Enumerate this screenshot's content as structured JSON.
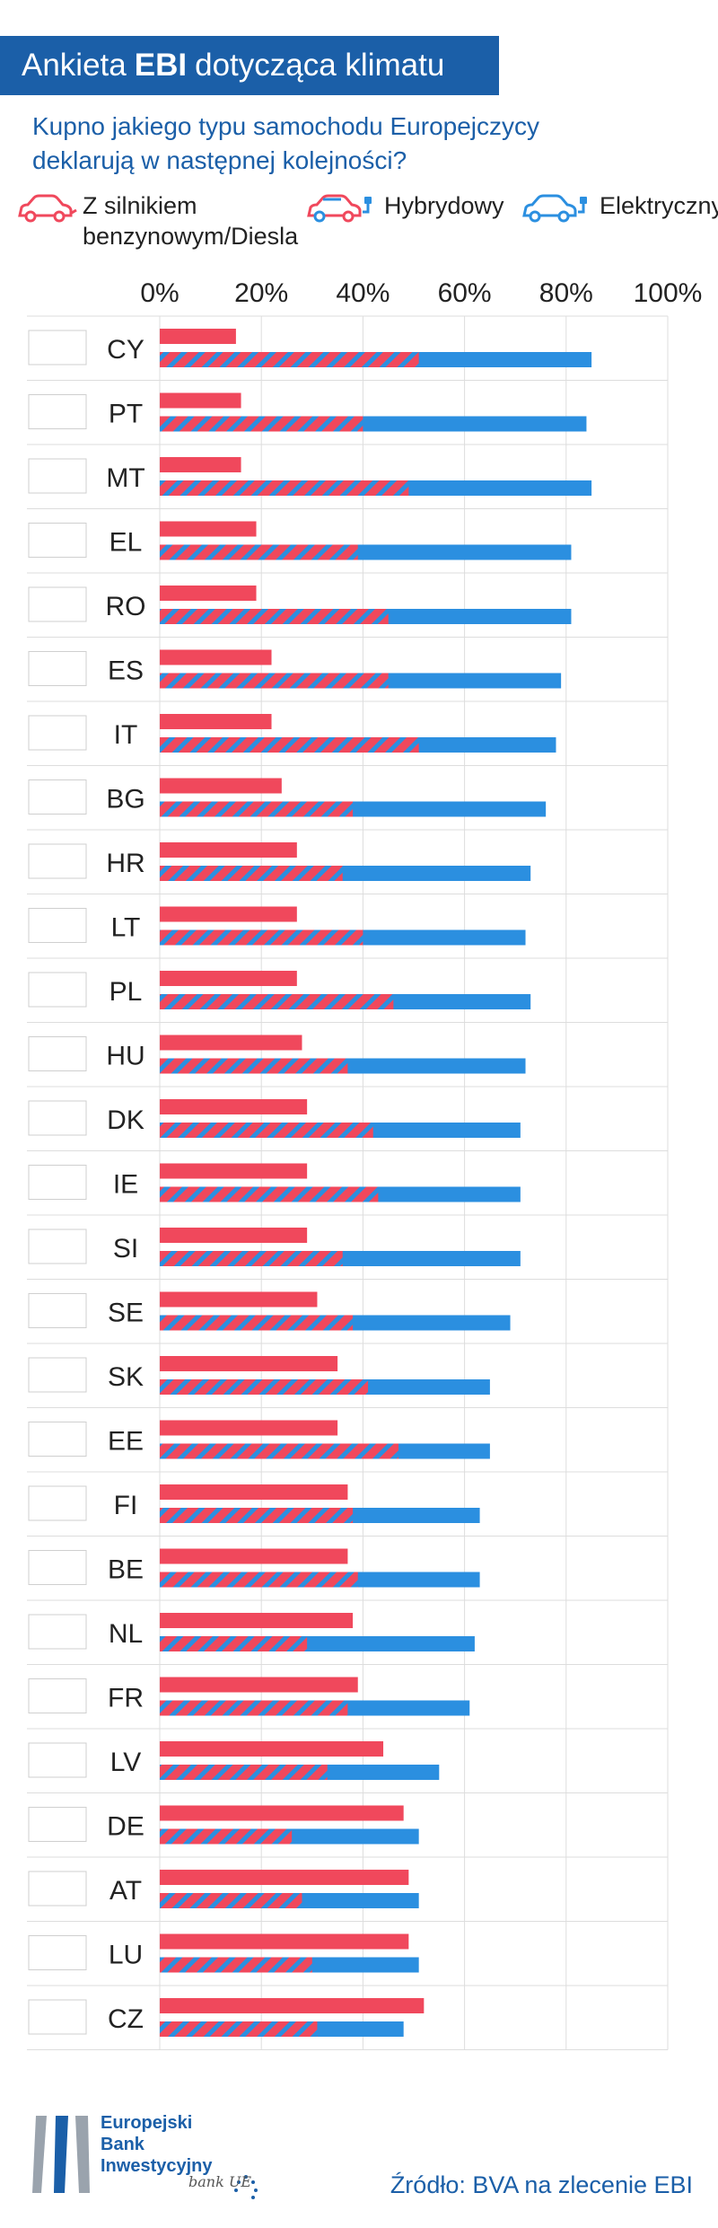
{
  "header": {
    "title_prefix": "Ankieta",
    "title_bold": "EBI",
    "title_suffix": "dotycząca klimatu"
  },
  "subtitle": "Kupno jakiego typu samochodu Europejczycy deklarują w następnej kolejności?",
  "legend": {
    "gas_line1": "Z silnikiem",
    "gas_line2": "benzynowym/Diesla",
    "hybrid": "Hybrydowy",
    "electric": "Elektryczny",
    "icons": [
      "car-icon-red",
      "car-icon-hybrid",
      "car-icon-blue"
    ]
  },
  "colors": {
    "gasoline": "#f0485c",
    "electric": "#2b8fe0",
    "brand": "#1b5fa8",
    "grid": "#dddddd"
  },
  "chart_data": {
    "type": "bar",
    "orientation": "horizontal",
    "x_ticks": [
      "0%",
      "20%",
      "40%",
      "60%",
      "80%",
      "100%"
    ],
    "xlim": [
      0,
      100
    ],
    "grid": true,
    "legend_placement": "top",
    "series_names": [
      "Z silnikiem benzynowym/Diesla",
      "Hybrydowy",
      "Elektryczny"
    ],
    "categories": [
      "CY",
      "PT",
      "MT",
      "EL",
      "RO",
      "ES",
      "IT",
      "BG",
      "HR",
      "LT",
      "PL",
      "HU",
      "DK",
      "IE",
      "SI",
      "SE",
      "SK",
      "EE",
      "FI",
      "BE",
      "NL",
      "FR",
      "LV",
      "DE",
      "AT",
      "LU",
      "CZ"
    ],
    "gasoline": [
      15,
      16,
      16,
      19,
      19,
      22,
      22,
      24,
      27,
      27,
      27,
      28,
      29,
      29,
      29,
      31,
      35,
      35,
      37,
      37,
      38,
      39,
      44,
      48,
      49,
      49,
      52
    ],
    "hybrid": [
      36,
      24,
      33,
      20,
      26,
      23,
      37,
      14,
      9,
      13,
      19,
      9,
      13,
      15,
      7,
      7,
      6,
      12,
      1,
      2,
      -9,
      -2,
      -11,
      -22,
      -21,
      -19,
      -21
    ],
    "electric": [
      85,
      84,
      85,
      81,
      81,
      79,
      78,
      76,
      73,
      72,
      73,
      72,
      71,
      71,
      71,
      69,
      65,
      65,
      63,
      63,
      62,
      61,
      55,
      51,
      51,
      51,
      48
    ],
    "stripes_to": [
      51,
      40,
      49,
      39,
      45,
      45,
      51,
      38,
      36,
      40,
      46,
      37,
      42,
      43,
      36,
      38,
      41,
      47,
      38,
      39,
      29,
      37,
      33,
      26,
      28,
      30,
      31
    ]
  },
  "source": "Źródło: BVA na zlecenie EBI",
  "logo": {
    "line1": "Europejski",
    "line2": "Bank",
    "line3": "Inwestycyjny",
    "badge": "bank UE"
  }
}
